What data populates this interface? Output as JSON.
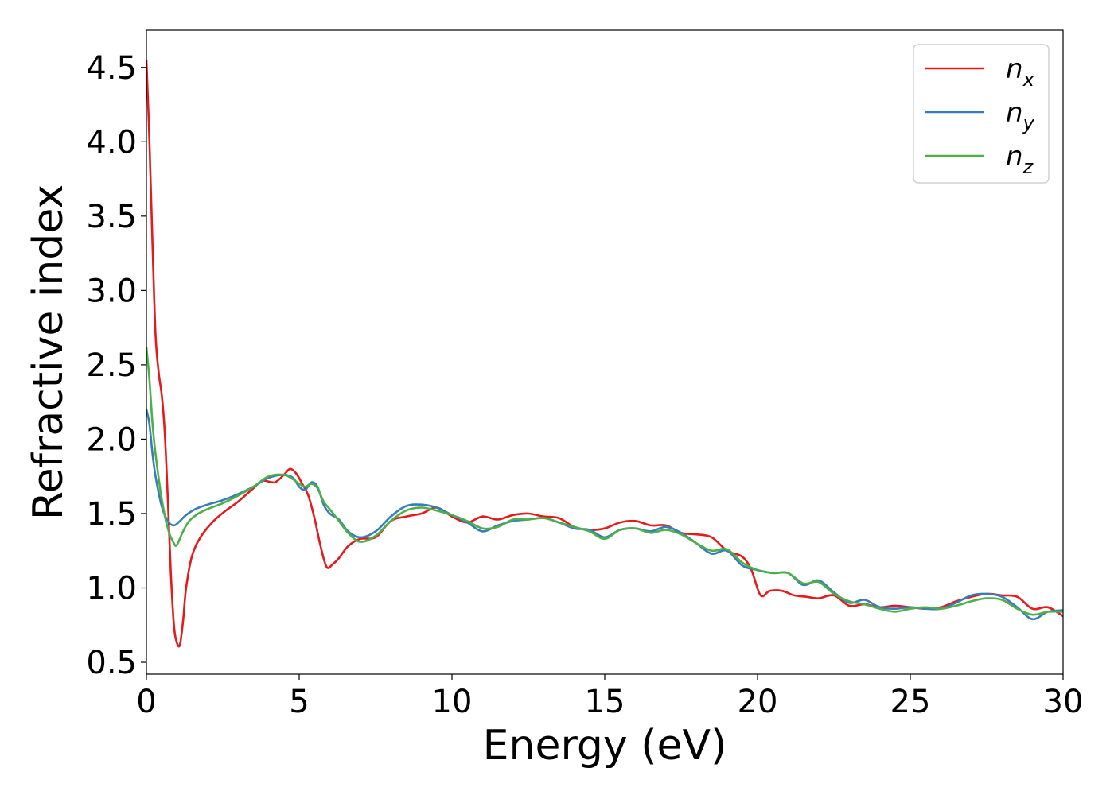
{
  "chart_data": {
    "type": "line",
    "xlabel": "Energy (eV)",
    "ylabel": "Refractive index",
    "xlim": [
      0,
      30
    ],
    "ylim": [
      0.42,
      4.75
    ],
    "xticks": [
      0,
      5,
      10,
      15,
      20,
      25,
      30
    ],
    "xtick_labels": [
      "0",
      "5",
      "10",
      "15",
      "20",
      "25",
      "30"
    ],
    "yticks": [
      0.5,
      1.0,
      1.5,
      2.0,
      2.5,
      3.0,
      3.5,
      4.0,
      4.5
    ],
    "ytick_labels": [
      "0.5",
      "1.0",
      "1.5",
      "2.0",
      "2.5",
      "3.0",
      "3.5",
      "4.0",
      "4.5"
    ],
    "grid": false,
    "legend_position": "top-right",
    "series": [
      {
        "name": "n_x",
        "legend_base": "n",
        "legend_sub": "x",
        "color": "#e41a1c",
        "x": [
          0,
          0.1,
          0.2,
          0.3,
          0.4,
          0.5,
          0.6,
          0.7,
          0.8,
          0.9,
          1.0,
          1.1,
          1.2,
          1.3,
          1.5,
          1.8,
          2.2,
          2.6,
          3.0,
          3.5,
          3.8,
          4.2,
          4.5,
          4.7,
          4.9,
          5.1,
          5.3,
          5.5,
          5.7,
          5.9,
          6.1,
          6.3,
          6.6,
          7.0,
          7.5,
          8.0,
          8.5,
          9.0,
          9.5,
          10.0,
          10.5,
          11.0,
          11.5,
          12.0,
          12.5,
          13.0,
          13.5,
          14.0,
          14.5,
          15.0,
          15.5,
          16.0,
          16.5,
          17.0,
          17.5,
          18.0,
          18.5,
          19.0,
          19.5,
          19.8,
          20.1,
          20.4,
          20.8,
          21.2,
          21.6,
          22.0,
          22.5,
          23.0,
          23.5,
          24.0,
          24.5,
          25.0,
          25.5,
          26.0,
          26.5,
          27.0,
          27.5,
          28.0,
          28.5,
          29.0,
          29.5,
          30.0
        ],
        "y": [
          4.55,
          4.0,
          3.3,
          2.7,
          2.45,
          2.3,
          2.05,
          1.6,
          1.1,
          0.75,
          0.63,
          0.62,
          0.78,
          1.0,
          1.22,
          1.35,
          1.45,
          1.52,
          1.58,
          1.67,
          1.72,
          1.71,
          1.76,
          1.8,
          1.77,
          1.7,
          1.62,
          1.47,
          1.28,
          1.14,
          1.16,
          1.2,
          1.28,
          1.33,
          1.34,
          1.45,
          1.48,
          1.5,
          1.54,
          1.48,
          1.44,
          1.48,
          1.46,
          1.49,
          1.5,
          1.48,
          1.47,
          1.41,
          1.39,
          1.4,
          1.44,
          1.45,
          1.42,
          1.42,
          1.37,
          1.36,
          1.34,
          1.25,
          1.21,
          1.12,
          0.95,
          0.98,
          0.98,
          0.95,
          0.94,
          0.93,
          0.95,
          0.88,
          0.89,
          0.87,
          0.88,
          0.87,
          0.86,
          0.87,
          0.91,
          0.94,
          0.96,
          0.95,
          0.94,
          0.86,
          0.87,
          0.81
        ]
      },
      {
        "name": "n_y",
        "legend_base": "n",
        "legend_sub": "y",
        "color": "#377eb8",
        "x": [
          0,
          0.1,
          0.2,
          0.3,
          0.5,
          0.7,
          0.9,
          1.1,
          1.3,
          1.6,
          2.0,
          2.5,
          3.0,
          3.5,
          4.0,
          4.5,
          4.8,
          5.0,
          5.2,
          5.4,
          5.6,
          5.8,
          6.0,
          6.3,
          6.6,
          7.0,
          7.5,
          8.0,
          8.5,
          9.0,
          9.5,
          10.0,
          10.5,
          11.0,
          11.5,
          12.0,
          12.5,
          13.0,
          13.5,
          14.0,
          14.5,
          15.0,
          15.5,
          16.0,
          16.5,
          17.0,
          17.5,
          18.0,
          18.5,
          19.0,
          19.5,
          20.0,
          20.5,
          21.0,
          21.5,
          22.0,
          22.5,
          23.0,
          23.5,
          24.0,
          24.5,
          25.0,
          25.5,
          26.0,
          26.5,
          27.0,
          27.5,
          28.0,
          28.5,
          29.0,
          29.5,
          30.0
        ],
        "y": [
          2.2,
          2.1,
          1.9,
          1.75,
          1.55,
          1.45,
          1.42,
          1.45,
          1.49,
          1.53,
          1.56,
          1.59,
          1.63,
          1.68,
          1.74,
          1.76,
          1.74,
          1.68,
          1.66,
          1.71,
          1.68,
          1.56,
          1.5,
          1.46,
          1.38,
          1.34,
          1.38,
          1.48,
          1.55,
          1.56,
          1.54,
          1.49,
          1.44,
          1.38,
          1.42,
          1.45,
          1.46,
          1.47,
          1.44,
          1.4,
          1.39,
          1.34,
          1.39,
          1.4,
          1.38,
          1.41,
          1.37,
          1.3,
          1.23,
          1.25,
          1.15,
          1.12,
          1.1,
          1.1,
          1.02,
          1.05,
          0.97,
          0.9,
          0.92,
          0.87,
          0.86,
          0.87,
          0.86,
          0.86,
          0.9,
          0.95,
          0.96,
          0.94,
          0.87,
          0.79,
          0.84,
          0.85
        ]
      },
      {
        "name": "n_z",
        "legend_base": "n",
        "legend_sub": "z",
        "color": "#4daf4a",
        "x": [
          0,
          0.1,
          0.2,
          0.3,
          0.5,
          0.7,
          0.9,
          1.0,
          1.2,
          1.4,
          1.7,
          2.0,
          2.5,
          3.0,
          3.5,
          4.0,
          4.5,
          4.8,
          5.0,
          5.2,
          5.4,
          5.6,
          5.8,
          6.0,
          6.3,
          6.6,
          7.0,
          7.5,
          8.0,
          8.5,
          9.0,
          9.5,
          10.0,
          10.5,
          11.0,
          11.5,
          12.0,
          12.5,
          13.0,
          13.5,
          14.0,
          14.5,
          15.0,
          15.5,
          16.0,
          16.5,
          17.0,
          17.5,
          18.0,
          18.5,
          19.0,
          19.5,
          20.0,
          20.5,
          21.0,
          21.5,
          22.0,
          22.5,
          23.0,
          23.5,
          24.0,
          24.5,
          25.0,
          25.5,
          26.0,
          26.5,
          27.0,
          27.5,
          28.0,
          28.5,
          29.0,
          29.5,
          30.0
        ],
        "y": [
          2.62,
          2.4,
          2.1,
          1.9,
          1.6,
          1.4,
          1.3,
          1.29,
          1.38,
          1.45,
          1.5,
          1.53,
          1.57,
          1.62,
          1.68,
          1.75,
          1.76,
          1.73,
          1.7,
          1.68,
          1.7,
          1.67,
          1.58,
          1.53,
          1.45,
          1.37,
          1.31,
          1.35,
          1.45,
          1.52,
          1.54,
          1.52,
          1.49,
          1.45,
          1.4,
          1.41,
          1.46,
          1.46,
          1.47,
          1.44,
          1.41,
          1.38,
          1.33,
          1.39,
          1.4,
          1.37,
          1.39,
          1.36,
          1.3,
          1.25,
          1.26,
          1.17,
          1.12,
          1.1,
          1.1,
          1.03,
          1.04,
          0.96,
          0.91,
          0.89,
          0.86,
          0.84,
          0.86,
          0.87,
          0.86,
          0.88,
          0.91,
          0.93,
          0.92,
          0.86,
          0.82,
          0.84,
          0.84
        ]
      }
    ]
  }
}
